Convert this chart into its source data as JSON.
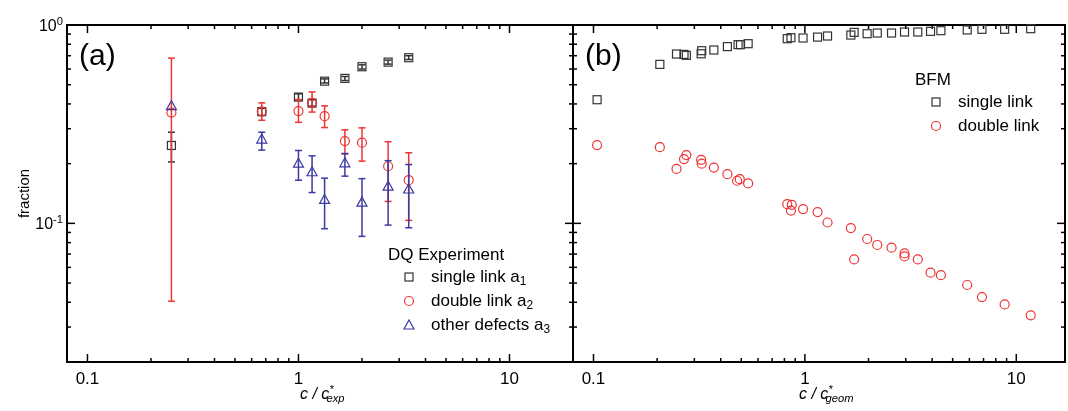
{
  "chart_data": [
    {
      "type": "scatter",
      "xlabel": "c / c$^{*}$$_{exp}$",
      "ylabel": "fraction",
      "legend_title": "DQ Experiment",
      "legend": "bottom right",
      "log": "xy",
      "annotations": [
        "(a)"
      ],
      "xlim": [
        0.08,
        20
      ],
      "ylim": [
        0.02,
        1
      ],
      "xticks": [
        0.1,
        {
          "value": 0.2,
          "label": null
        },
        {
          "value": 0.3,
          "label": null
        },
        {
          "value": 0.4,
          "label": null
        },
        {
          "value": 0.5,
          "label": null
        },
        {
          "value": 0.6,
          "label": null
        },
        {
          "value": 0.7,
          "label": null
        },
        {
          "value": 0.8,
          "label": null
        },
        {
          "value": 0.9,
          "label": null
        },
        1,
        {
          "value": 2,
          "label": null
        },
        {
          "value": 3,
          "label": null
        },
        {
          "value": 4,
          "label": null
        },
        {
          "value": 5,
          "label": null
        },
        {
          "value": 6,
          "label": null
        },
        {
          "value": 7,
          "label": null
        },
        {
          "value": 8,
          "label": null
        },
        {
          "value": 9,
          "label": null
        },
        10
      ],
      "yticks": [
        {
          "value": 0.02,
          "label": null
        },
        {
          "value": 0.03,
          "label": null
        },
        {
          "value": 0.04,
          "label": null
        },
        {
          "value": 0.05,
          "label": null
        },
        {
          "value": 0.06,
          "label": null
        },
        {
          "value": 0.07,
          "label": null
        },
        {
          "value": 0.08,
          "label": null
        },
        {
          "value": 0.09,
          "label": null
        },
        {
          "value": 0.1,
          "label": "10$^{-1}$"
        },
        {
          "value": 0.2,
          "label": null
        },
        {
          "value": 0.3,
          "label": null
        },
        {
          "value": 0.4,
          "label": null
        },
        {
          "value": 0.5,
          "label": null
        },
        {
          "value": 0.6,
          "label": null
        },
        {
          "value": 0.7,
          "label": null
        },
        {
          "value": 0.8,
          "label": null
        },
        {
          "value": 0.9,
          "label": null
        },
        {
          "value": 1,
          "label": "10$^{0}$"
        }
      ],
      "x": [
        0.25,
        0.67,
        1,
        1.16,
        1.33,
        1.66,
        2,
        2.66,
        3.33
      ],
      "series": [
        {
          "name": "single link a$_{1}$",
          "color": "#333333",
          "marker": "square",
          "values": [
            0.247,
            0.366,
            0.433,
            0.404,
            0.521,
            0.538,
            0.616,
            0.65,
            0.684
          ],
          "errors": [
            [
              0.204,
              0.288
            ],
            [
              0.35,
              0.38
            ],
            [
              0.42,
              0.45
            ],
            [
              0.39,
              0.42
            ],
            [
              0.51,
              0.535
            ],
            [
              0.525,
              0.55
            ],
            [
              0.6,
              0.63
            ],
            [
              0.635,
              0.665
            ],
            [
              0.67,
              0.7
            ]
          ]
        },
        {
          "name": "double link a$_{2}$",
          "color": "#ee3333",
          "marker": "circle",
          "values": [
            0.362,
            0.366,
            0.368,
            0.405,
            0.347,
            0.26,
            0.255,
            0.194,
            0.165
          ],
          "errors": [
            [
              0.0405,
              0.681
            ],
            [
              0.331,
              0.405
            ],
            [
              0.323,
              0.421
            ],
            [
              0.364,
              0.46
            ],
            [
              0.304,
              0.391
            ],
            [
              0.224,
              0.296
            ],
            [
              0.206,
              0.303
            ],
            [
              0.129,
              0.258
            ],
            [
              0.1035,
              0.227
            ]
          ]
        },
        {
          "name": "other defects a$_{3}$",
          "color": "#3a3aa0",
          "marker": "triangle",
          "values": [
            0.392,
            0.266,
            0.201,
            0.182,
            0.132,
            0.202,
            0.128,
            0.154,
            0.149
          ],
          "errors": [
            null,
            [
              0.234,
              0.288
            ],
            [
              0.165,
              0.233
            ],
            [
              0.143,
              0.219
            ],
            [
              0.094,
              0.169
            ],
            [
              0.173,
              0.225
            ],
            [
              0.086,
              0.168
            ],
            [
              0.098,
              0.207
            ],
            [
              0.095,
              0.198
            ]
          ]
        }
      ]
    },
    {
      "type": "scatter",
      "xlabel": "c / c$^{*}$$_{geom}$",
      "legend_title": "BFM",
      "legend": "top right",
      "log": "xy",
      "annotations": [
        "(b)"
      ],
      "tick_labels": "x",
      "xlim": [
        0.08,
        17
      ],
      "ylim": [
        0.02,
        1
      ],
      "xticks": [
        0.1,
        {
          "value": 0.2,
          "label": null
        },
        {
          "value": 0.3,
          "label": null
        },
        {
          "value": 0.4,
          "label": null
        },
        {
          "value": 0.5,
          "label": null
        },
        {
          "value": 0.6,
          "label": null
        },
        {
          "value": 0.7,
          "label": null
        },
        {
          "value": 0.8,
          "label": null
        },
        {
          "value": 0.9,
          "label": null
        },
        1,
        {
          "value": 2,
          "label": null
        },
        {
          "value": 3,
          "label": null
        },
        {
          "value": 4,
          "label": null
        },
        {
          "value": 5,
          "label": null
        },
        {
          "value": 6,
          "label": null
        },
        {
          "value": 7,
          "label": null
        },
        {
          "value": 8,
          "label": null
        },
        {
          "value": 9,
          "label": null
        },
        10
      ],
      "yticks": [
        {
          "value": 0.02,
          "label": null
        },
        {
          "value": 0.03,
          "label": null
        },
        {
          "value": 0.04,
          "label": null
        },
        {
          "value": 0.05,
          "label": null
        },
        {
          "value": 0.06,
          "label": null
        },
        {
          "value": 0.07,
          "label": null
        },
        {
          "value": 0.08,
          "label": null
        },
        {
          "value": 0.09,
          "label": null
        },
        {
          "value": 0.1,
          "label": null
        },
        {
          "value": 0.2,
          "label": null
        },
        {
          "value": 0.3,
          "label": null
        },
        {
          "value": 0.4,
          "label": null
        },
        {
          "value": 0.5,
          "label": null
        },
        {
          "value": 0.6,
          "label": null
        },
        {
          "value": 0.7,
          "label": null
        },
        {
          "value": 0.8,
          "label": null
        },
        {
          "value": 0.9,
          "label": null
        },
        {
          "value": 1,
          "label": null
        }
      ],
      "series": [
        {
          "name": "single link",
          "color": "#333333",
          "marker": "square",
          "x": [
            0.104,
            0.206,
            0.247,
            0.268,
            0.275,
            0.323,
            0.325,
            0.371,
            0.43,
            0.483,
            0.496,
            0.539,
            0.825,
            0.859,
            0.98,
            1.148,
            1.28,
            1.65,
            1.71,
            1.97,
            2.2,
            2.57,
            2.96,
            3.42,
            3.93,
            4.4,
            5.86,
            6.88,
            8.81,
            11.7
          ],
          "values": [
            0.42,
            0.633,
            0.714,
            0.711,
            0.703,
            0.716,
            0.742,
            0.748,
            0.778,
            0.796,
            0.796,
            0.805,
            0.853,
            0.863,
            0.86,
            0.869,
            0.88,
            0.89,
            0.918,
            0.904,
            0.911,
            0.911,
            0.922,
            0.922,
            0.929,
            0.936,
            0.944,
            0.951,
            0.951,
            0.958
          ]
        },
        {
          "name": "double link",
          "color": "#ee3333",
          "marker": "circle",
          "x": [
            0.104,
            0.206,
            0.247,
            0.268,
            0.275,
            0.323,
            0.325,
            0.371,
            0.43,
            0.478,
            0.492,
            0.539,
            0.825,
            0.867,
            0.859,
            0.98,
            1.148,
            1.28,
            1.65,
            1.71,
            1.97,
            2.2,
            2.57,
            2.96,
            2.96,
            3.42,
            3.93,
            4.4,
            5.86,
            6.88,
            8.81,
            11.7
          ],
          "values": [
            0.248,
            0.242,
            0.188,
            0.211,
            0.221,
            0.209,
            0.2,
            0.191,
            0.177,
            0.164,
            0.167,
            0.159,
            0.125,
            0.124,
            0.116,
            0.118,
            0.114,
            0.101,
            0.0947,
            0.0658,
            0.0834,
            0.0778,
            0.0754,
            0.0705,
            0.0681,
            0.0658,
            0.0564,
            0.0548,
            0.0489,
            0.0425,
            0.039,
            0.0344
          ]
        }
      ]
    }
  ]
}
